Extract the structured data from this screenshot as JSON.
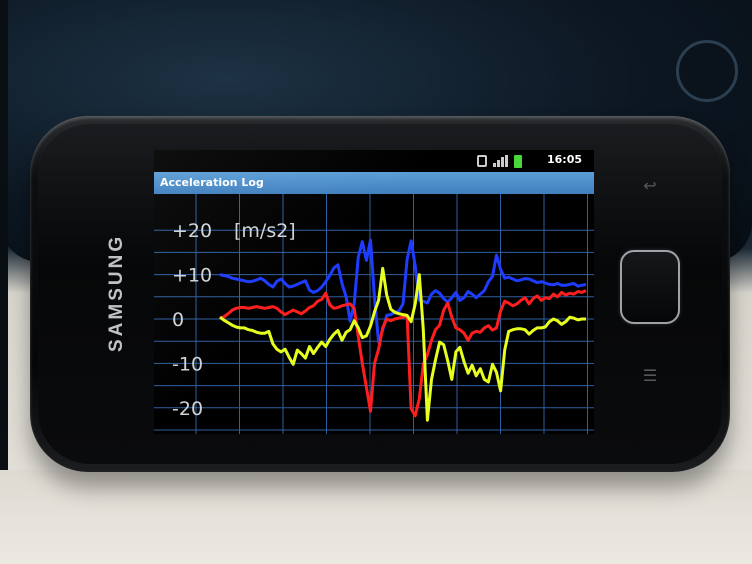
{
  "device": {
    "brand": "SAMSUNG"
  },
  "status_bar": {
    "time": "16:05",
    "icons": [
      "vibrate-icon",
      "signal-icon",
      "battery-icon"
    ],
    "battery_color": "#49d83a"
  },
  "app": {
    "title": "Acceleration Log",
    "title_bar_color": "#4a8ccb"
  },
  "chart_data": {
    "type": "line",
    "unit_label": "[m/s2]",
    "y_tick_labels": [
      "+20",
      "+10",
      "0",
      "-10",
      "-20"
    ],
    "y_ticks": [
      20,
      10,
      0,
      -10,
      -20
    ],
    "ylim": [
      -25,
      25
    ],
    "grid": true,
    "grid_color": "#2f5fa0",
    "x": [
      0,
      1,
      2,
      3,
      4,
      5,
      6,
      7,
      8,
      9,
      10,
      11,
      12,
      13,
      14,
      15,
      16,
      17,
      18,
      19,
      20,
      21,
      22,
      23,
      24,
      25,
      26,
      27,
      28,
      29,
      30,
      31,
      32,
      33,
      34,
      35,
      36,
      37,
      38,
      39,
      40,
      41,
      42,
      43,
      44,
      45,
      46,
      47,
      48,
      49,
      50,
      51,
      52,
      53,
      54,
      55,
      56,
      57,
      58,
      59,
      60,
      61,
      62,
      63,
      64,
      65,
      66,
      67,
      68,
      69,
      70,
      71,
      72,
      73,
      74,
      75,
      76,
      77,
      78,
      79,
      80,
      81,
      82,
      83,
      84,
      85,
      86,
      87,
      88,
      89,
      90
    ],
    "series": [
      {
        "color": "#1e3cff",
        "values": [
          10,
          9.8,
          9.6,
          9.2,
          9,
          8.8,
          8.6,
          8.4,
          8.5,
          8.8,
          9.2,
          8.6,
          7.8,
          7.2,
          8.5,
          9,
          8,
          7.2,
          7.4,
          7.8,
          8.2,
          8.6,
          6.5,
          6,
          6.4,
          7.2,
          8.4,
          9.8,
          11.5,
          12.2,
          8,
          5,
          -0.5,
          3.5,
          14,
          17.4,
          13.2,
          17.8,
          4.8,
          -5.2,
          -2.5,
          0.8,
          1,
          1.5,
          1.8,
          3.4,
          13.4,
          17.6,
          12,
          4.2,
          4,
          3.6,
          5.6,
          6.4,
          5.8,
          4.6,
          3.8,
          4.8,
          6,
          4.2,
          4.8,
          6.2,
          5.6,
          4.8,
          5.6,
          6.4,
          8.4,
          9.6,
          14.4,
          11.2,
          9.2,
          9.4,
          9,
          8.6,
          8.8,
          9.1,
          9,
          8.6,
          8.2,
          8.4,
          8.1,
          7.8,
          7.7,
          8,
          7.6,
          7.6,
          7.8,
          8,
          7.4,
          7.6,
          7.8
        ]
      },
      {
        "color": "#ff1e1e",
        "values": [
          0.2,
          0.5,
          1.2,
          2,
          2.4,
          2.6,
          2.6,
          2.4,
          2.6,
          2.8,
          2.6,
          2.4,
          2.6,
          2.8,
          2.4,
          1.6,
          1,
          1.5,
          2,
          1.6,
          1.2,
          1.8,
          2.6,
          3,
          4,
          4.4,
          5.8,
          3.2,
          2.4,
          2.6,
          3,
          3.2,
          3.4,
          2.4,
          -4,
          -10,
          -15.4,
          -20.8,
          -10,
          -6.8,
          -2,
          0,
          -0.4,
          0,
          0.2,
          0.4,
          0.8,
          -20.2,
          -21.8,
          -18,
          -10.2,
          -8,
          -4.8,
          -2.4,
          -1.4,
          2,
          3.6,
          0.4,
          -2,
          -2.4,
          -3.2,
          -4.8,
          -3.2,
          -2.8,
          -3,
          -2,
          -1.5,
          -2.5,
          -2,
          1.8,
          4,
          3.6,
          3,
          3.4,
          4.2,
          4.8,
          3.4,
          4.6,
          5.2,
          4.2,
          4.8,
          4.6,
          5.6,
          5,
          6,
          5.4,
          5.8,
          5.6,
          6.2,
          6,
          6.4
        ]
      },
      {
        "color": "#e6ff1e",
        "values": [
          0.4,
          -0.3,
          -0.8,
          -1.4,
          -1.8,
          -2,
          -2,
          -2.4,
          -2.6,
          -3,
          -3.2,
          -3.2,
          -2.8,
          -5.6,
          -6.8,
          -7.4,
          -6.8,
          -8.6,
          -10.2,
          -7,
          -7.8,
          -8.8,
          -6.2,
          -7.8,
          -6.4,
          -5.2,
          -6.2,
          -4.6,
          -3.4,
          -2.6,
          -4.8,
          -3,
          -2.4,
          -0.4,
          -2,
          -4.2,
          -3.8,
          -1.6,
          1.6,
          4.2,
          11.4,
          5.4,
          2.2,
          1.5,
          1.2,
          1,
          0.8,
          -0.6,
          3.4,
          10,
          -2.4,
          -22.8,
          -13.6,
          -9.2,
          -5.2,
          -5.8,
          -9.4,
          -13.6,
          -7.4,
          -6.4,
          -9.6,
          -12.2,
          -10.4,
          -12.8,
          -11.2,
          -13.6,
          -14.2,
          -10.2,
          -12,
          -16.2,
          -7,
          -2.8,
          -2.4,
          -2.2,
          -2.2,
          -2.4,
          -3.4,
          -2.6,
          -2,
          -2,
          -1.8,
          -0.6,
          0,
          -0.4,
          -1.2,
          -0.6,
          0.4,
          0.2,
          -0.2,
          0,
          0
        ]
      }
    ]
  }
}
